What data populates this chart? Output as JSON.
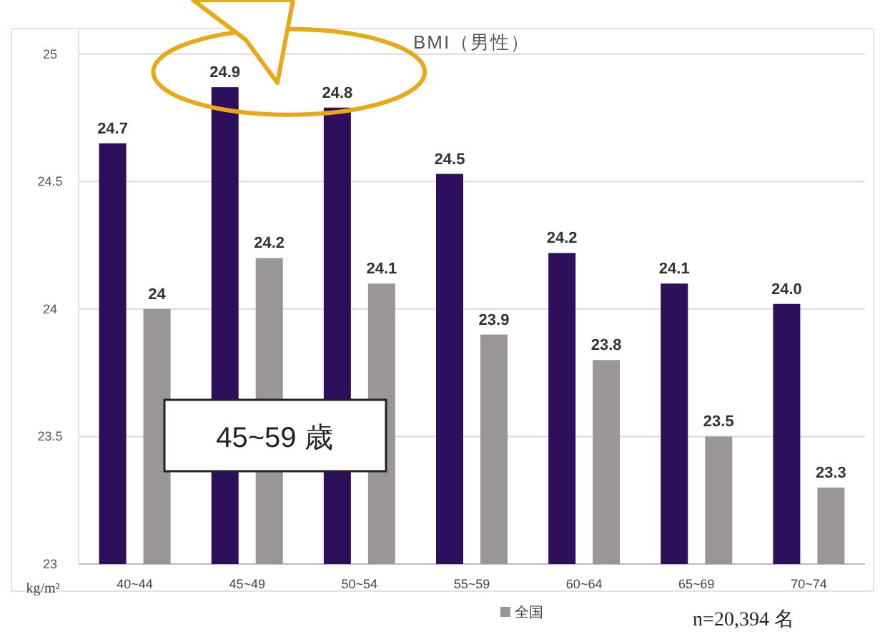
{
  "chart_data": {
    "type": "bar",
    "title": "BMI（男性）",
    "ylabel": "kg/m²",
    "categories": [
      "40~44",
      "45~49",
      "50~54",
      "55~59",
      "60~64",
      "65~69",
      "70~74"
    ],
    "series": [
      {
        "color": "#2e0f5c",
        "values": [
          24.65,
          24.87,
          24.79,
          24.53,
          24.22,
          24.1,
          24.02
        ],
        "value_labels": [
          "24.7",
          "24.9",
          "24.8",
          "24.5",
          "24.2",
          "24.1",
          "24.0"
        ]
      },
      {
        "name": "全国",
        "color": "#9a9597",
        "values": [
          24.0,
          24.2,
          24.1,
          23.9,
          23.8,
          23.5,
          23.3
        ],
        "value_labels": [
          "24",
          "24.2",
          "24.1",
          "23.9",
          "23.8",
          "23.5",
          "23.3"
        ]
      }
    ],
    "ylim": [
      23,
      25.1
    ],
    "yticks": [
      23,
      23.5,
      24,
      24.5,
      25
    ],
    "grid": "y",
    "legend": "bottom",
    "annotations": [
      "45~59 歳",
      "n=20,394 名"
    ]
  }
}
